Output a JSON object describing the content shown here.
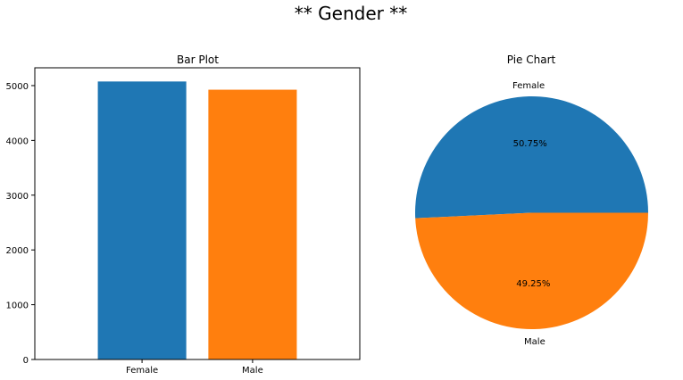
{
  "figure": {
    "suptitle": "** Gender **"
  },
  "chart_data": [
    {
      "type": "bar",
      "title": "Bar Plot",
      "categories": [
        "Female",
        "Male"
      ],
      "values": [
        5075,
        4925
      ],
      "colors": [
        "#1f77b4",
        "#ff7f0e"
      ],
      "ylim": [
        0,
        5325
      ],
      "yticks": [
        0,
        1000,
        2000,
        3000,
        4000,
        5000
      ],
      "xlabel": "",
      "ylabel": "",
      "grid": false
    },
    {
      "type": "pie",
      "title": "Pie Chart",
      "labels": [
        "Female",
        "Male"
      ],
      "values": [
        50.75,
        49.25
      ],
      "pct_labels": [
        "50.75%",
        "49.25%"
      ],
      "colors": [
        "#1f77b4",
        "#ff7f0e"
      ]
    }
  ]
}
